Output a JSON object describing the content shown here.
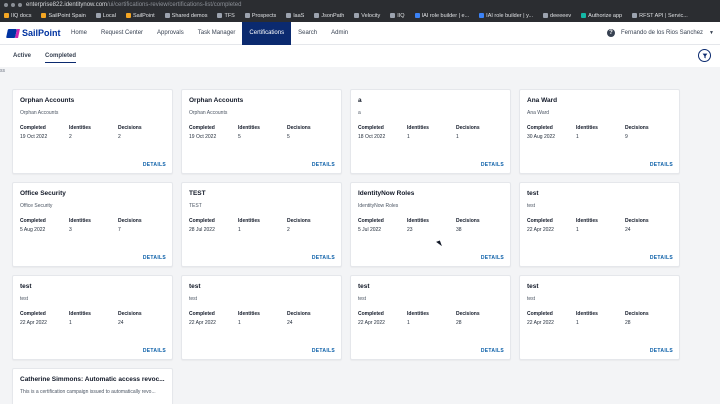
{
  "browser": {
    "url_main": "enterprise822.identitynow.com",
    "url_path": "/ui/certifications-review/certifications-list/completed",
    "bookmarks": [
      {
        "label": "IIQ docs",
        "icon": "orange"
      },
      {
        "label": "SailPoint Spain",
        "icon": "orange"
      },
      {
        "label": "Local",
        "icon": "gray"
      },
      {
        "label": "SailPoint",
        "icon": "orange"
      },
      {
        "label": "Shared demos",
        "icon": "gray"
      },
      {
        "label": "TFS",
        "icon": "gray"
      },
      {
        "label": "Prospects",
        "icon": "gray"
      },
      {
        "label": "laaS",
        "icon": "gray"
      },
      {
        "label": "JsonPath",
        "icon": "gray"
      },
      {
        "label": "Velocity",
        "icon": "gray"
      },
      {
        "label": "IIQ",
        "icon": "gray"
      },
      {
        "label": "IAI role builder | e...",
        "icon": "blue"
      },
      {
        "label": "IAI role builder | y...",
        "icon": "blue"
      },
      {
        "label": "deeeeev",
        "icon": "gray"
      },
      {
        "label": "Authorize app",
        "icon": "teal"
      },
      {
        "label": "RFST API | Servic...",
        "icon": "gray"
      }
    ]
  },
  "app": {
    "logo_text": "SailPoint",
    "nav": [
      "Home",
      "Request Center",
      "Approvals",
      "Task Manager",
      "Certifications",
      "Search",
      "Admin"
    ],
    "active_nav": "Certifications",
    "user_name": "Fernando de los Rios Sanchez",
    "help_glyph": "?"
  },
  "tabs": {
    "active_label": "Active",
    "completed_label": "Completed",
    "selected": "Completed"
  },
  "side_mark": "ss",
  "labels": {
    "completed": "Completed",
    "identities": "Identities",
    "decisions": "Decisions",
    "details": "DETAILS"
  },
  "cards": [
    {
      "title": "Orphan Accounts",
      "subtitle": "Orphan Accounts",
      "completed": "19 Oct 2022",
      "identities": "2",
      "decisions": "2"
    },
    {
      "title": "Orphan Accounts",
      "subtitle": "Orphan Accounts",
      "completed": "19 Oct 2022",
      "identities": "5",
      "decisions": "5"
    },
    {
      "title": "a",
      "subtitle": "a",
      "completed": "18 Oct 2022",
      "identities": "1",
      "decisions": "1"
    },
    {
      "title": "Ana Ward",
      "subtitle": "Ana Ward",
      "completed": "30 Aug 2022",
      "identities": "1",
      "decisions": "9"
    },
    {
      "title": "Office Security",
      "subtitle": "Office Security",
      "completed": "5 Aug 2022",
      "identities": "3",
      "decisions": "7"
    },
    {
      "title": "TEST",
      "subtitle": "TEST",
      "completed": "28 Jul 2022",
      "identities": "1",
      "decisions": "2"
    },
    {
      "title": "IdentityNow Roles",
      "subtitle": "IdentityNow Roles",
      "completed": "5 Jul 2022",
      "identities": "23",
      "decisions": "38"
    },
    {
      "title": "test",
      "subtitle": "test",
      "completed": "22 Apr 2022",
      "identities": "1",
      "decisions": "24"
    },
    {
      "title": "test",
      "subtitle": "test",
      "completed": "22 Apr 2022",
      "identities": "1",
      "decisions": "24"
    },
    {
      "title": "test",
      "subtitle": "test",
      "completed": "22 Apr 2022",
      "identities": "1",
      "decisions": "24"
    },
    {
      "title": "test",
      "subtitle": "test",
      "completed": "22 Apr 2022",
      "identities": "1",
      "decisions": "28"
    },
    {
      "title": "test",
      "subtitle": "test",
      "completed": "22 Apr 2022",
      "identities": "1",
      "decisions": "28"
    }
  ],
  "partial_card": {
    "title": "Catherine Simmons: Automatic access revoc...",
    "subtitle": "This is a certification campaign issued to automatically revo..."
  },
  "colors": {
    "brand": "#0033a1",
    "nav_active": "#0b2a6f",
    "link": "#0b5fa8"
  }
}
